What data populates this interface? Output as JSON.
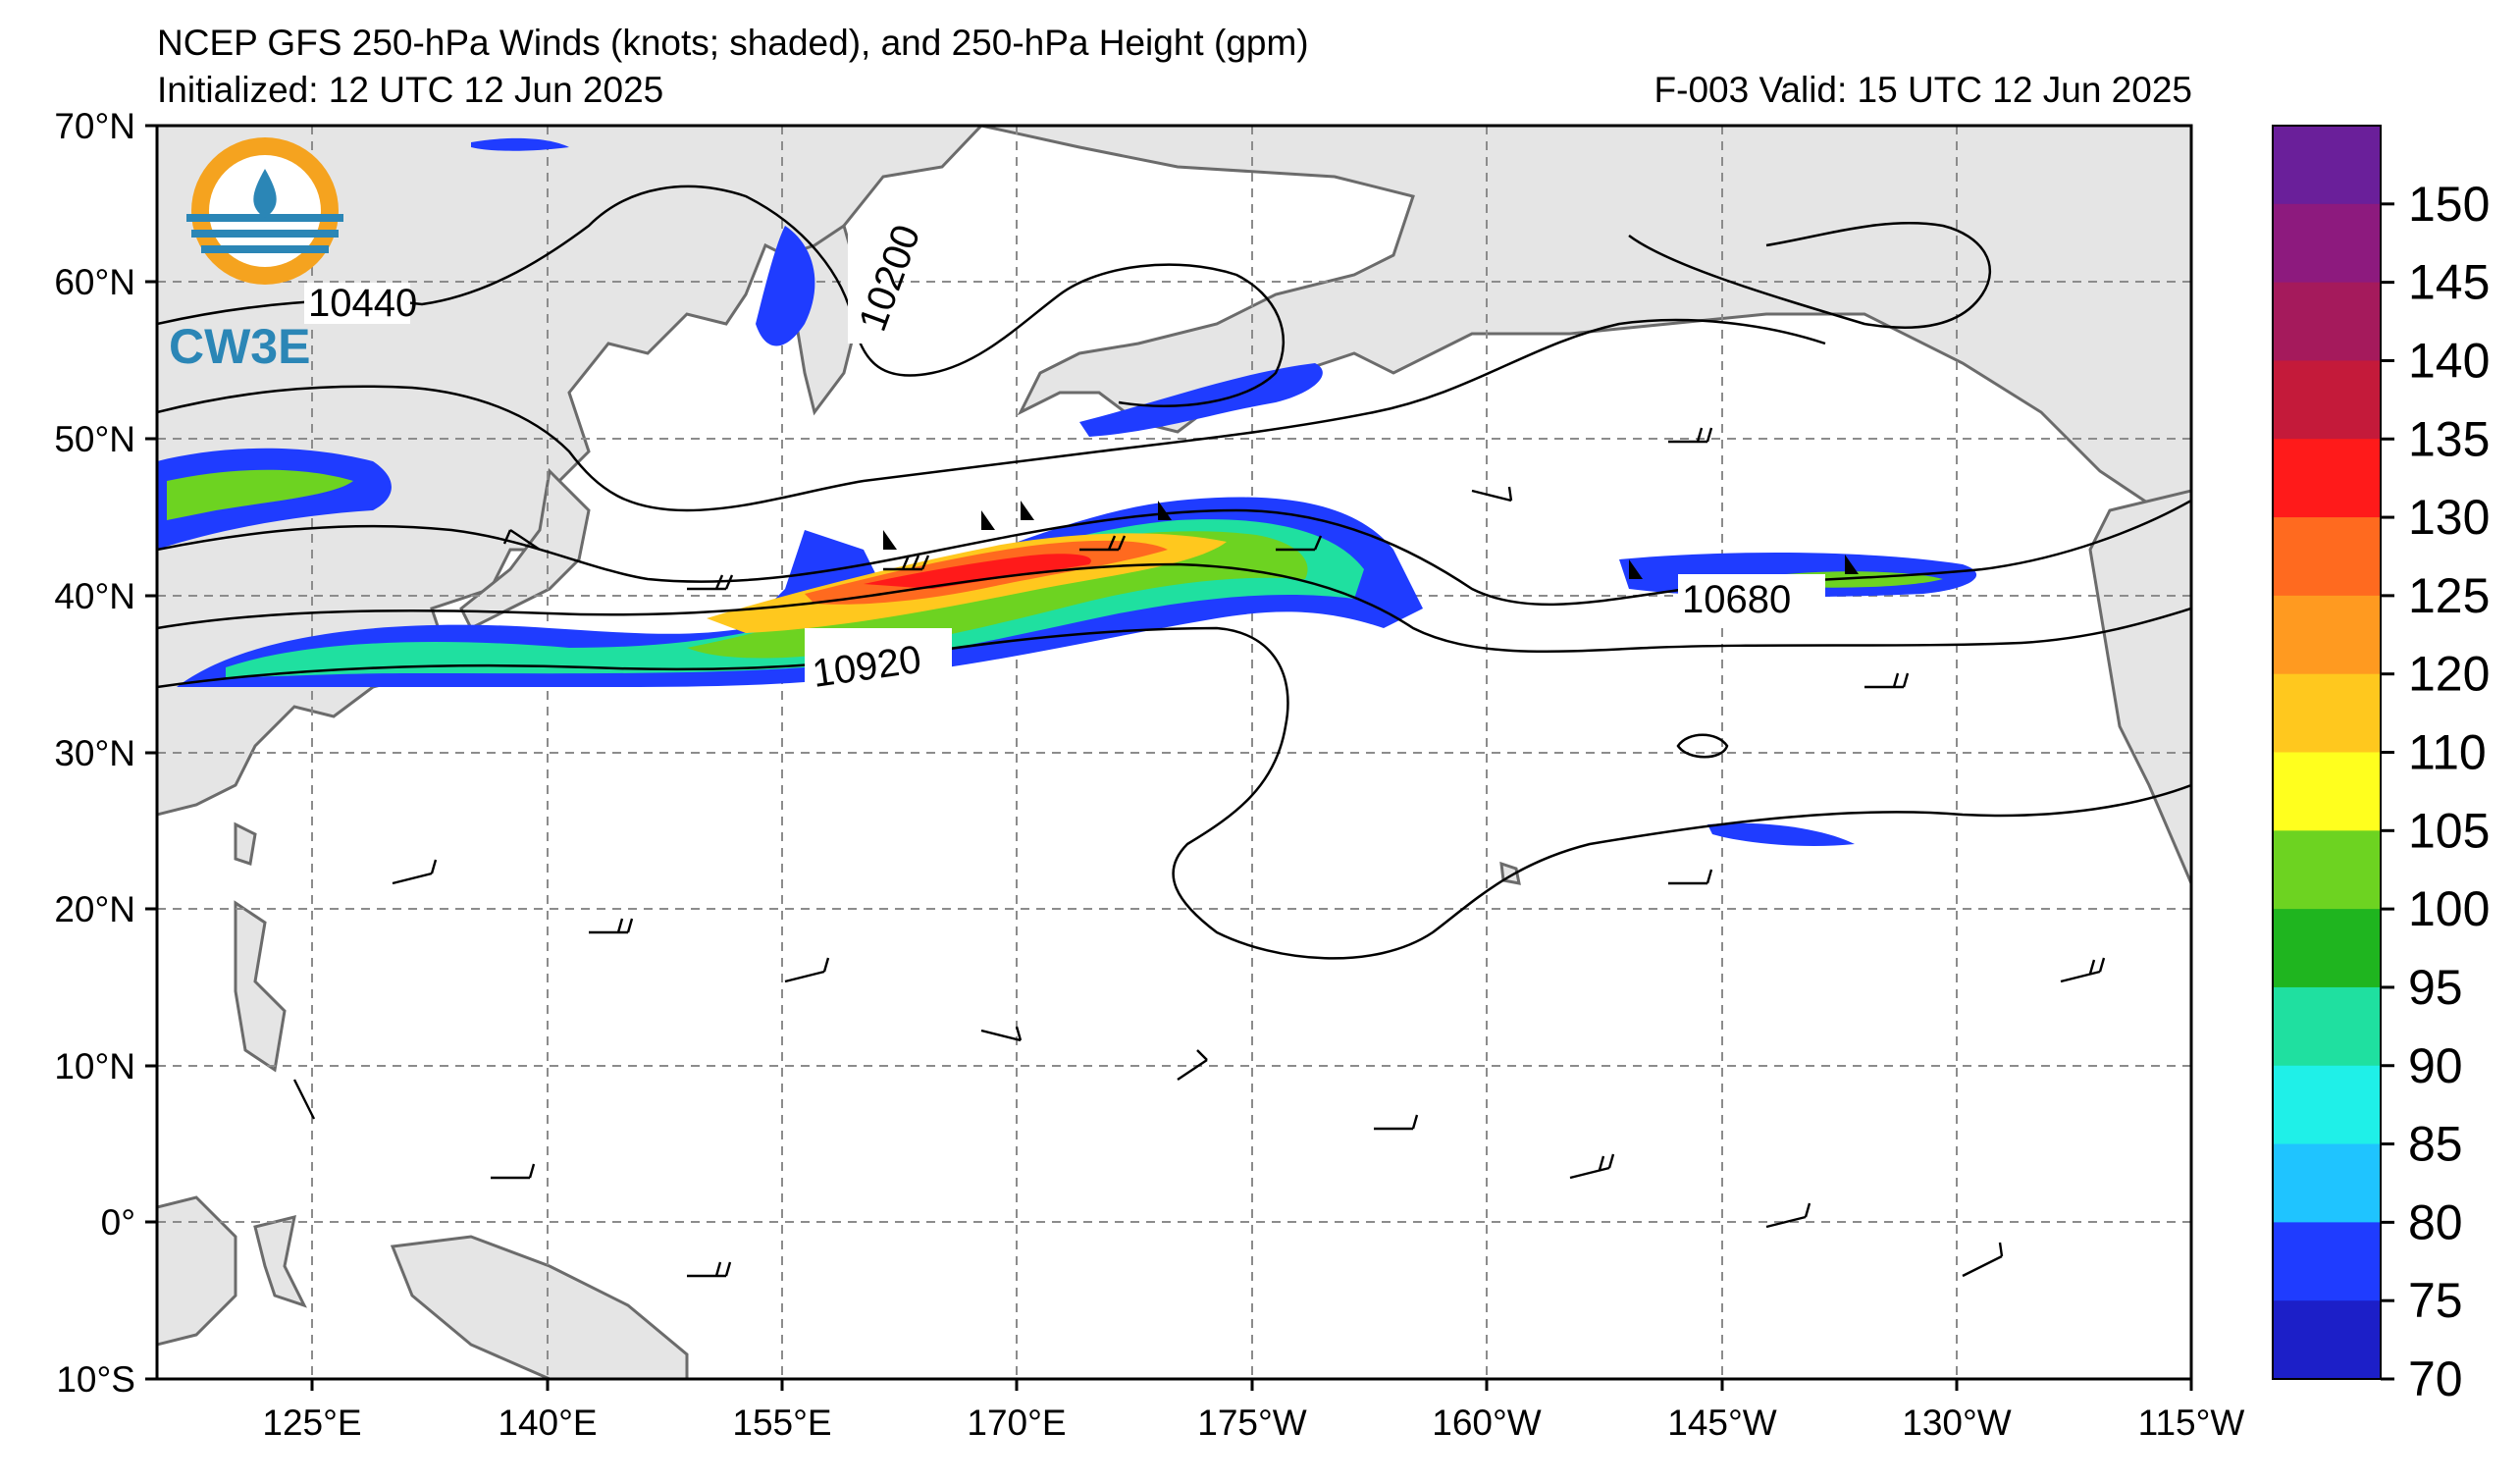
{
  "title": "NCEP GFS 250-hPa Winds (knots; shaded), and 250-hPa Height (gpm)",
  "initialized": "Initialized: 12 UTC 12 Jun 2025",
  "valid": "F-003  Valid: 15 UTC 12 Jun 2025",
  "logo": {
    "text": "CW3E",
    "colors": {
      "ring": "#f5a31f",
      "wave": "#2b86b6"
    }
  },
  "map": {
    "lat_labels": [
      "70°N",
      "60°N",
      "50°N",
      "40°N",
      "30°N",
      "20°N",
      "10°N",
      "0°",
      "10°S"
    ],
    "lon_labels": [
      "125°E",
      "140°E",
      "155°E",
      "170°E",
      "175°W",
      "160°W",
      "145°W",
      "130°W",
      "115°W"
    ],
    "land_color": "#e5e5e5",
    "coast_color": "#6b6b6b",
    "grid_color": "#8c8c8c"
  },
  "height_contour_labels": [
    "10440",
    "10200",
    "10920",
    "10680"
  ],
  "colorbar": {
    "labels": [
      "150",
      "145",
      "140",
      "135",
      "130",
      "125",
      "120",
      "110",
      "105",
      "100",
      "95",
      "90",
      "85",
      "80",
      "75",
      "70"
    ],
    "colors": [
      "#6a1f9a",
      "#8d1a7e",
      "#a51a5c",
      "#c41a3a",
      "#ff1a1a",
      "#ff6a1f",
      "#ff9a20",
      "#ffc81e",
      "#ffff1e",
      "#6dd321",
      "#1fb51f",
      "#1fe0a0",
      "#1ff0e8",
      "#1fc4ff",
      "#1f3cff",
      "#1c1fc8"
    ]
  }
}
